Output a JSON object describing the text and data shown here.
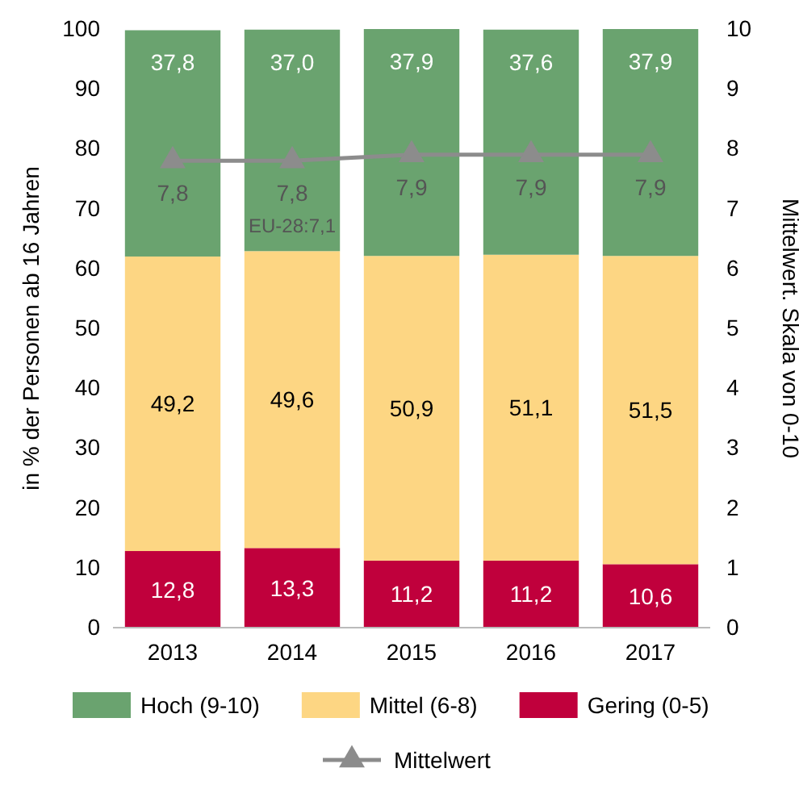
{
  "chart_data": {
    "type": "bar",
    "stacked": true,
    "categories": [
      "2013",
      "2014",
      "2015",
      "2016",
      "2017"
    ],
    "ylabel": "in % der Personen ab 16 Jahren",
    "y2label": "Mittelwert. Skala von 0-10",
    "ylim": [
      0,
      100
    ],
    "yticks": [
      0,
      10,
      20,
      30,
      40,
      50,
      60,
      70,
      80,
      90,
      100
    ],
    "y2lim": [
      0,
      10
    ],
    "y2ticks": [
      0,
      1,
      2,
      3,
      4,
      5,
      6,
      7,
      8,
      9,
      10
    ],
    "legend": "bottom",
    "annotations": [
      "EU-28:7,1"
    ],
    "series": [
      {
        "name": "Gering (0-5)",
        "color": "#c0003c",
        "values": [
          12.8,
          13.3,
          11.2,
          11.2,
          10.6
        ],
        "value_labels": [
          "12,8",
          "13,3",
          "11,2",
          "11,2",
          "10,6"
        ]
      },
      {
        "name": "Mittel (6-8)",
        "color": "#fdd683",
        "values": [
          49.2,
          49.6,
          50.9,
          51.1,
          51.5
        ],
        "value_labels": [
          "49,2",
          "49,6",
          "50,9",
          "51,1",
          "51,5"
        ]
      },
      {
        "name": "Hoch (9-10)",
        "color": "#6aa36f",
        "values": [
          37.8,
          37.0,
          37.9,
          37.6,
          37.9
        ],
        "value_labels": [
          "37,8",
          "37,0",
          "37,9",
          "37,6",
          "37,9"
        ]
      },
      {
        "name": "Mittelwert",
        "type": "line",
        "axis": "y2",
        "color": "#8c8c8c",
        "marker": "triangle",
        "values": [
          7.8,
          7.8,
          7.9,
          7.9,
          7.9
        ],
        "value_labels": [
          "7,8",
          "7,8",
          "7,9",
          "7,9",
          "7,9"
        ]
      }
    ]
  }
}
